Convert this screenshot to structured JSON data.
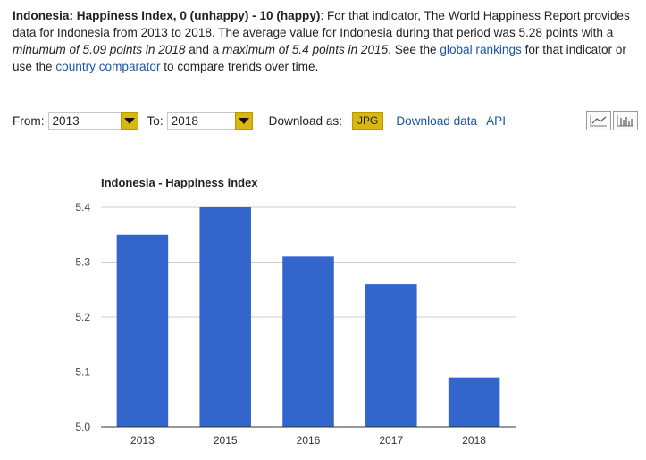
{
  "description": {
    "heading": "Indonesia: Happiness Index, 0 (unhappy) - 10 (happy)",
    "sentence1": ": For that indicator, The World Happiness Report provides data for Indonesia from 2013 to 2018. The average value for Indonesia during that period was 5.28 points with a ",
    "minimum": "minumum of 5.09 points in 2018",
    "and_text": " and a ",
    "maximum": "maximum of 5.4 points in 2015",
    "see_text": ". See the ",
    "global_rankings_link": "global rankings",
    "middle_text": " for that indicator or use the ",
    "country_comparator_link": "country comparator",
    "end_text": " to compare trends over time."
  },
  "controls": {
    "from_label": "From:",
    "from_value": "2013",
    "to_label": "To:",
    "to_value": "2018",
    "download_label": "Download as:",
    "jpg_button": "JPG",
    "download_data_link": "Download data",
    "api_link": "API"
  },
  "colors": {
    "bar": "#3366cc",
    "accent": "#d8b70f",
    "link": "#1a56a6"
  },
  "icons": {
    "line_chart": "line-chart-icon",
    "bar_chart": "bar-chart-icon",
    "dropdown": "chevron-down-icon"
  },
  "chart_data": {
    "type": "bar",
    "title": "Indonesia - Happiness index",
    "categories": [
      "2013",
      "2015",
      "2016",
      "2017",
      "2018"
    ],
    "values": [
      5.35,
      5.4,
      5.31,
      5.26,
      5.09
    ],
    "yticks": [
      "5.0",
      "5.1",
      "5.2",
      "5.3",
      "5.4"
    ],
    "ylim": [
      5.0,
      5.4
    ],
    "xlabel": "",
    "ylabel": "",
    "grid": true
  }
}
